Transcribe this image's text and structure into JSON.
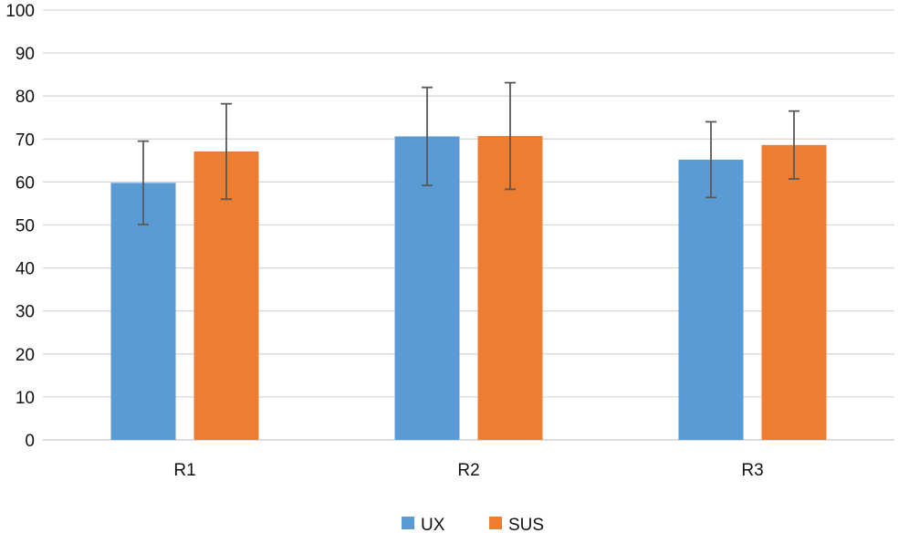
{
  "chart_data": {
    "type": "bar",
    "categories": [
      "R1",
      "R2",
      "R3"
    ],
    "series": [
      {
        "name": "UX",
        "color": "#5b9bd5",
        "values": [
          59.8,
          70.6,
          65.2
        ],
        "error": [
          9.7,
          11.4,
          8.8
        ]
      },
      {
        "name": "SUS",
        "color": "#ed7d31",
        "values": [
          67.1,
          70.7,
          68.6
        ],
        "error": [
          11.1,
          12.4,
          7.9
        ]
      }
    ],
    "ylim": [
      0,
      100
    ],
    "yticks": [
      0,
      10,
      20,
      30,
      40,
      50,
      60,
      70,
      80,
      90,
      100
    ],
    "grid": true,
    "legend_position": "bottom",
    "title": "",
    "xlabel": "",
    "ylabel": ""
  }
}
